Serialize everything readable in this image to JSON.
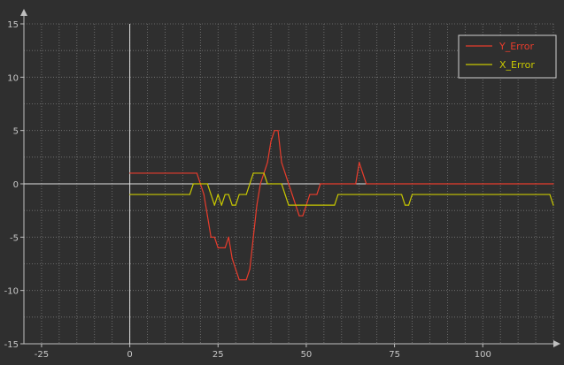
{
  "chart_data": {
    "type": "line",
    "title": "",
    "xlabel": "",
    "ylabel": "",
    "xlim": [
      -30,
      120
    ],
    "ylim": [
      -15,
      15
    ],
    "x_ticks": [
      -25,
      0,
      25,
      50,
      75,
      100
    ],
    "y_ticks": [
      -15,
      -10,
      -5,
      0,
      5,
      10,
      15
    ],
    "x_tick_labels": [
      "-25",
      "0",
      "25",
      "50",
      "75",
      "100"
    ],
    "y_tick_labels": [
      "-15",
      "-10",
      "-5",
      "0",
      "5",
      "10",
      "15"
    ],
    "grid": true,
    "legend_position": "top-right",
    "colors": {
      "background": "#2f2f2f",
      "grid": "#8a8a8a",
      "axis": "#e0e0e0",
      "legend_border": "#d0d0d0"
    },
    "series": [
      {
        "name": "Y_Error",
        "color": "#e83c2c",
        "points": [
          [
            0,
            1
          ],
          [
            19,
            1
          ],
          [
            20,
            0
          ],
          [
            21,
            -1
          ],
          [
            22,
            -3
          ],
          [
            23,
            -5
          ],
          [
            24,
            -5
          ],
          [
            25,
            -6
          ],
          [
            27,
            -6
          ],
          [
            28,
            -5
          ],
          [
            29,
            -7
          ],
          [
            30,
            -8
          ],
          [
            31,
            -9
          ],
          [
            33,
            -9
          ],
          [
            34,
            -8
          ],
          [
            35,
            -5
          ],
          [
            36,
            -2
          ],
          [
            37,
            0
          ],
          [
            38,
            1
          ],
          [
            39,
            2
          ],
          [
            40,
            4
          ],
          [
            41,
            5
          ],
          [
            42,
            5
          ],
          [
            43,
            2
          ],
          [
            44,
            1
          ],
          [
            45,
            0
          ],
          [
            46,
            -1
          ],
          [
            47,
            -2
          ],
          [
            48,
            -3
          ],
          [
            49,
            -3
          ],
          [
            50,
            -2
          ],
          [
            51,
            -1
          ],
          [
            53,
            -1
          ],
          [
            54,
            0
          ],
          [
            64,
            0
          ],
          [
            65,
            2
          ],
          [
            66,
            1
          ],
          [
            67,
            0
          ],
          [
            120,
            0
          ]
        ]
      },
      {
        "name": "X_Error",
        "color": "#c8c800",
        "points": [
          [
            0,
            -1
          ],
          [
            17,
            -1
          ],
          [
            18,
            0
          ],
          [
            22,
            0
          ],
          [
            23,
            -1
          ],
          [
            24,
            -2
          ],
          [
            25,
            -1
          ],
          [
            26,
            -2
          ],
          [
            27,
            -1
          ],
          [
            28,
            -1
          ],
          [
            29,
            -2
          ],
          [
            30,
            -2
          ],
          [
            31,
            -1
          ],
          [
            32,
            -1
          ],
          [
            33,
            -1
          ],
          [
            34,
            0
          ],
          [
            35,
            1
          ],
          [
            38,
            1
          ],
          [
            39,
            0
          ],
          [
            43,
            0
          ],
          [
            44,
            -1
          ],
          [
            45,
            -2
          ],
          [
            58,
            -2
          ],
          [
            59,
            -1
          ],
          [
            77,
            -1
          ],
          [
            78,
            -2
          ],
          [
            79,
            -2
          ],
          [
            80,
            -1
          ],
          [
            119,
            -1
          ],
          [
            120,
            -2
          ]
        ]
      }
    ]
  }
}
